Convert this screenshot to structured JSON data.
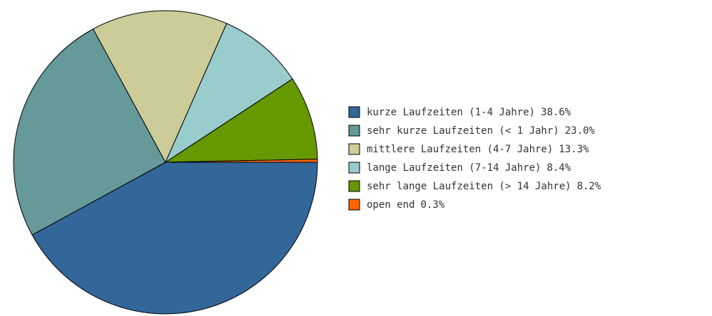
{
  "chart_data": {
    "type": "pie",
    "categories": [
      "kurze Laufzeiten (1-4 Jahre)",
      "sehr kurze Laufzeiten (< 1 Jahr)",
      "mittlere Laufzeiten (4-7 Jahre)",
      "lange Laufzeiten (7-14 Jahre)",
      "sehr lange Laufzeiten (> 14 Jahre)",
      "open end"
    ],
    "values": [
      38.6,
      23.0,
      13.3,
      8.4,
      8.2,
      0.3
    ],
    "value_labels": [
      "38.6%",
      "23.0%",
      "13.3%",
      "8.4%",
      "8.2%",
      "0.3%"
    ],
    "colors": [
      "#336699",
      "#669999",
      "#cccc99",
      "#99cccc",
      "#669900",
      "#ff6600"
    ],
    "legend": "right"
  }
}
